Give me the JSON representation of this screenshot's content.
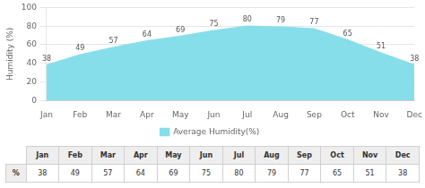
{
  "chart_data": {
    "type": "area",
    "categories": [
      "Jan",
      "Feb",
      "Mar",
      "Apr",
      "May",
      "Jun",
      "Jul",
      "Aug",
      "Sep",
      "Oct",
      "Nov",
      "Dec"
    ],
    "series": [
      {
        "name": "Average Humidity(%)",
        "color": "#87DEEB",
        "values": [
          38,
          49,
          57,
          64,
          69,
          75,
          80,
          79,
          77,
          65,
          51,
          38
        ]
      }
    ],
    "ylabel": "Humidity (%)",
    "ylim": [
      0,
      100
    ],
    "yticks": [
      0,
      20,
      40,
      60,
      80,
      100
    ],
    "grid": true,
    "legend": "bottom",
    "data_labels": true,
    "table_row_label": "%"
  }
}
